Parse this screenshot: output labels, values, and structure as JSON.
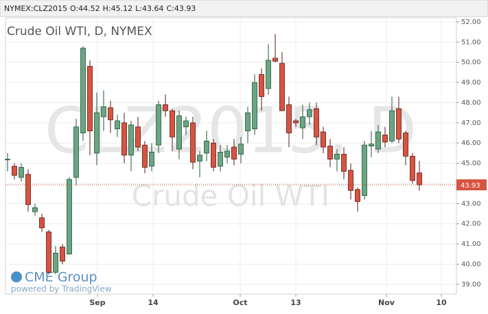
{
  "chart_data": {
    "type": "candlestick",
    "symbol": "NYMEX:CLZ2015",
    "ohlc_labels": [
      "O:",
      "H:",
      "L:",
      "C:"
    ],
    "title": "Crude Oil WTI, D, NYMEX",
    "watermark": "CLZ2015, D",
    "watermark_subtitle": "Crude Oil WTI",
    "logo": "CME Group",
    "logo_note": "powered by TradingView",
    "up_color": "#6ba583",
    "up_border": "#225437",
    "down_color": "#d75442",
    "down_border": "#5b1a13",
    "last_line_color": "#c0392b",
    "grid": true,
    "open": [
      45.18,
      44.85,
      44.3,
      44.45,
      42.6,
      42.3,
      41.6,
      39.6,
      40.85,
      40.5,
      44.3,
      46.5,
      49.8,
      45.5,
      47.3,
      47.75,
      46.7,
      47.0,
      45.4,
      46.8,
      45.9,
      44.85,
      45.9,
      47.9,
      47.6,
      45.7,
      46.8,
      47.0,
      45.1,
      45.5,
      46.0,
      44.85,
      45.3,
      45.8,
      45.45,
      46.6,
      46.7,
      49.4,
      48.7,
      50.2,
      49.95,
      47.9,
      47.1,
      46.75,
      47.3,
      47.7,
      46.55,
      45.85,
      45.2,
      45.45,
      44.65,
      43.7,
      43.4,
      45.85,
      45.7,
      46.4,
      46.1,
      47.7,
      46.5,
      45.35,
      44.52
    ],
    "high": [
      45.5,
      45.0,
      45.0,
      44.7,
      43.0,
      42.5,
      41.7,
      40.9,
      41.0,
      44.3,
      47.2,
      50.8,
      50.1,
      48.5,
      48.6,
      48.1,
      47.4,
      47.5,
      47.1,
      47.3,
      46.1,
      46.0,
      48.1,
      48.4,
      47.7,
      47.6,
      47.3,
      47.3,
      45.6,
      46.6,
      46.2,
      45.9,
      45.9,
      46.2,
      46.3,
      47.8,
      49.4,
      49.7,
      50.9,
      51.4,
      50.5,
      48.3,
      47.2,
      47.9,
      48.0,
      48.0,
      46.8,
      46.2,
      45.7,
      45.8,
      45.0,
      43.8,
      46.1,
      46.6,
      46.9,
      46.8,
      48.3,
      48.3,
      46.6,
      45.5,
      45.12
    ],
    "low": [
      44.6,
      44.2,
      44.1,
      42.6,
      42.4,
      41.6,
      39.5,
      39.5,
      40.0,
      40.5,
      43.9,
      46.1,
      45.4,
      44.9,
      46.6,
      46.5,
      46.3,
      45.0,
      44.6,
      45.6,
      44.5,
      44.6,
      45.5,
      47.3,
      45.6,
      45.2,
      46.4,
      44.7,
      44.3,
      45.1,
      44.6,
      44.6,
      45.0,
      44.9,
      45.0,
      46.0,
      46.4,
      47.6,
      48.4,
      50.0,
      47.6,
      45.8,
      46.8,
      46.2,
      46.9,
      45.9,
      45.5,
      44.8,
      44.6,
      44.2,
      43.2,
      42.6,
      43.2,
      45.3,
      45.5,
      45.8,
      46.0,
      46.0,
      44.9,
      44.0,
      43.64
    ],
    "close": [
      45.2,
      44.4,
      44.8,
      42.95,
      42.8,
      41.8,
      39.6,
      40.55,
      40.15,
      44.2,
      46.8,
      50.7,
      46.6,
      47.5,
      47.8,
      47.15,
      47.1,
      45.4,
      46.9,
      45.8,
      44.8,
      45.55,
      47.9,
      47.6,
      46.3,
      47.35,
      47.1,
      45.05,
      45.4,
      46.1,
      44.8,
      45.55,
      45.6,
      45.2,
      45.95,
      47.5,
      49.0,
      48.3,
      50.1,
      50.05,
      47.6,
      46.5,
      47.0,
      47.3,
      47.65,
      46.3,
      45.8,
      45.2,
      45.45,
      44.6,
      43.65,
      43.1,
      45.9,
      45.95,
      46.55,
      46.05,
      47.6,
      46.2,
      45.35,
      44.15,
      43.93
    ],
    "xlim": [
      -0.3,
      65.4
    ],
    "xticks": [
      {
        "value": 13.1,
        "label": "Sep"
      },
      {
        "value": 21.2,
        "label": "14"
      },
      {
        "value": 33.9,
        "label": "Oct"
      },
      {
        "value": 42,
        "label": "13"
      },
      {
        "value": 55.2,
        "label": "Nov"
      },
      {
        "value": 63.2,
        "label": "10"
      }
    ],
    "ylim": [
      38.52,
      52.2
    ],
    "yticks": [
      {
        "value": 39,
        "label": "39.00"
      },
      {
        "value": 40,
        "label": "40.00"
      },
      {
        "value": 41,
        "label": "41.00"
      },
      {
        "value": 42,
        "label": "42.00"
      },
      {
        "value": 43,
        "label": "43.00"
      },
      {
        "value": 44,
        "label": "44.00"
      },
      {
        "value": 45,
        "label": "45.00"
      },
      {
        "value": 46,
        "label": "46.00"
      },
      {
        "value": 47,
        "label": "47.00"
      },
      {
        "value": 48,
        "label": "48.00"
      },
      {
        "value": 49,
        "label": "49.00"
      },
      {
        "value": 50,
        "label": "50.00"
      },
      {
        "value": 51,
        "label": "51.00"
      },
      {
        "value": 52,
        "label": "52.00"
      }
    ]
  }
}
